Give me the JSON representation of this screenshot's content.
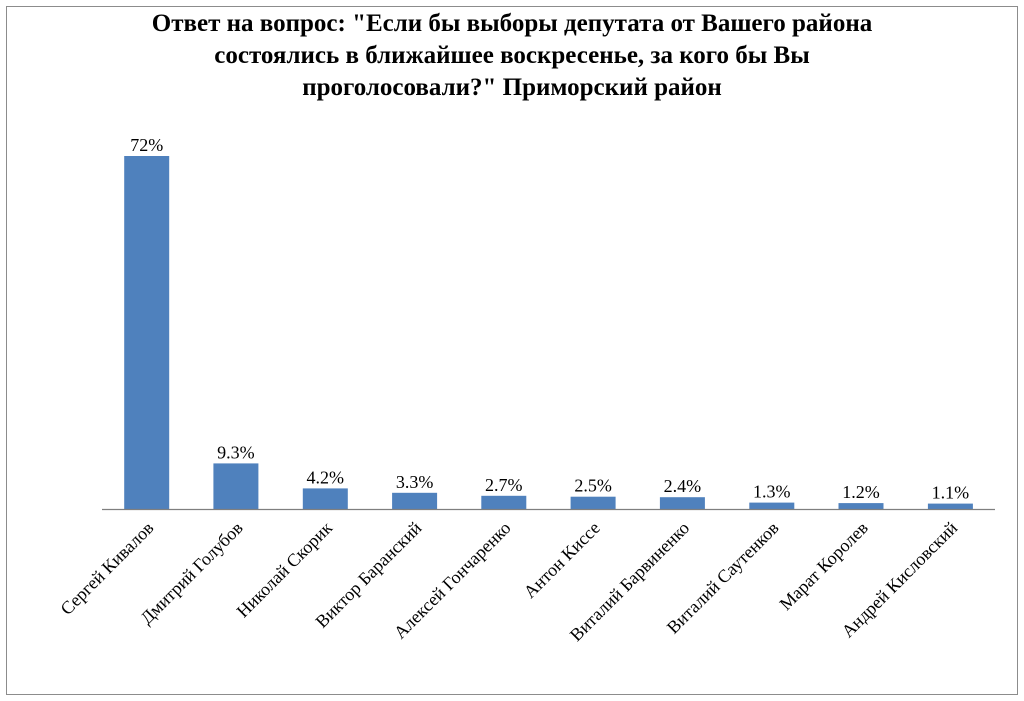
{
  "chart_data": {
    "type": "bar",
    "title_lines": [
      "Ответ на вопрос: \"Если бы выборы депутата от Вашего района",
      "состоялись в ближайшее воскресенье, за кого бы Вы",
      "проголосовали?\" Приморский район"
    ],
    "categories": [
      "Сергей Кивалов",
      "Дмитрий Голубов",
      "Николай Скорик",
      "Виктор Баранский",
      "Алексей Гончаренко",
      "Антон Киссе",
      "Виталий Барвиненко",
      "Виталий Саутенков",
      "Марат Королев",
      "Андрей Кисловский"
    ],
    "values": [
      72,
      9.3,
      4.2,
      3.3,
      2.7,
      2.5,
      2.4,
      1.3,
      1.2,
      1.1
    ],
    "value_labels": [
      "72%",
      "9.3%",
      "4.2%",
      "3.3%",
      "2.7%",
      "2.5%",
      "2.4%",
      "1.3%",
      "1.2%",
      "1.1%"
    ],
    "ylim": [
      0,
      72
    ],
    "bar_color": "#4f81bd",
    "grid": false,
    "legend": "none"
  }
}
